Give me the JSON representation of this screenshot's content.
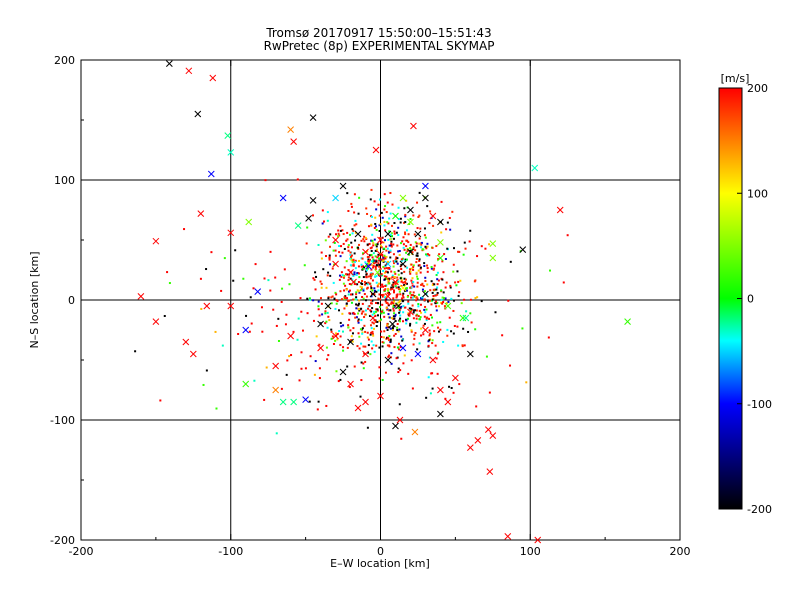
{
  "chart_data": {
    "type": "scatter",
    "title": "Tromsø 20170917 15:50:00–15:51:43",
    "subtitle": "RwPretec (8p) EXPERIMENTAL SKYMAP",
    "xlabel": "E–W location [km]",
    "ylabel": "N–S location [km]",
    "xlim": [
      -200,
      200
    ],
    "ylim": [
      -200,
      200
    ],
    "x_ticks": [
      -200,
      -100,
      0,
      100,
      200
    ],
    "y_ticks": [
      -200,
      -100,
      0,
      100,
      200
    ],
    "grid": true,
    "colorbar": {
      "label": "[m/s]",
      "range": [
        -200,
        200
      ],
      "ticks": [
        200,
        100,
        0,
        -100,
        -200
      ],
      "colors": [
        "#ff0000",
        "#ffff00",
        "#00ff00",
        "#00ffff",
        "#0000ff",
        "#000000"
      ]
    },
    "crosses": [
      {
        "x": -141,
        "y": 197,
        "v": -200
      },
      {
        "x": -128,
        "y": 191,
        "v": 200
      },
      {
        "x": -112,
        "y": 185,
        "v": 200
      },
      {
        "x": -122,
        "y": 155,
        "v": -200
      },
      {
        "x": -45,
        "y": 152,
        "v": -200
      },
      {
        "x": -102,
        "y": 137,
        "v": -20
      },
      {
        "x": -100,
        "y": 123,
        "v": -30
      },
      {
        "x": -113,
        "y": 105,
        "v": -100
      },
      {
        "x": -60,
        "y": 142,
        "v": 150
      },
      {
        "x": -58,
        "y": 132,
        "v": 200
      },
      {
        "x": 22,
        "y": 145,
        "v": 200
      },
      {
        "x": -3,
        "y": 125,
        "v": 200
      },
      {
        "x": -120,
        "y": 72,
        "v": 200
      },
      {
        "x": -100,
        "y": 56,
        "v": 200
      },
      {
        "x": -88,
        "y": 65,
        "v": 50
      },
      {
        "x": -150,
        "y": 49,
        "v": 200
      },
      {
        "x": -160,
        "y": 3,
        "v": 200
      },
      {
        "x": -150,
        "y": -18,
        "v": 200
      },
      {
        "x": -130,
        "y": -35,
        "v": 200
      },
      {
        "x": -125,
        "y": -45,
        "v": 200
      },
      {
        "x": -116,
        "y": -5,
        "v": 200
      },
      {
        "x": -90,
        "y": -25,
        "v": -100
      },
      {
        "x": -82,
        "y": 7,
        "v": -100
      },
      {
        "x": -90,
        "y": -70,
        "v": 20
      },
      {
        "x": -65,
        "y": -85,
        "v": -20
      },
      {
        "x": -58,
        "y": -85,
        "v": -20
      },
      {
        "x": -50,
        "y": -83,
        "v": -100
      },
      {
        "x": -70,
        "y": -75,
        "v": 150
      },
      {
        "x": -65,
        "y": 85,
        "v": -100
      },
      {
        "x": -45,
        "y": 83,
        "v": -200
      },
      {
        "x": -30,
        "y": 85,
        "v": -50
      },
      {
        "x": -25,
        "y": 95,
        "v": -200
      },
      {
        "x": -48,
        "y": 68,
        "v": -200
      },
      {
        "x": -55,
        "y": 62,
        "v": -20
      },
      {
        "x": -30,
        "y": 50,
        "v": 200
      },
      {
        "x": -15,
        "y": 55,
        "v": -200
      },
      {
        "x": -10,
        "y": 40,
        "v": 200
      },
      {
        "x": 0,
        "y": 38,
        "v": 200
      },
      {
        "x": -20,
        "y": 23,
        "v": 200
      },
      {
        "x": -18,
        "y": 15,
        "v": 200
      },
      {
        "x": -8,
        "y": 28,
        "v": -100
      },
      {
        "x": -2,
        "y": 23,
        "v": 50
      },
      {
        "x": 10,
        "y": 15,
        "v": 200
      },
      {
        "x": 15,
        "y": 30,
        "v": -200
      },
      {
        "x": 20,
        "y": 40,
        "v": -200
      },
      {
        "x": 25,
        "y": 55,
        "v": -200
      },
      {
        "x": 10,
        "y": 70,
        "v": 0
      },
      {
        "x": 20,
        "y": 75,
        "v": -200
      },
      {
        "x": 30,
        "y": 85,
        "v": -200
      },
      {
        "x": 30,
        "y": 95,
        "v": -100
      },
      {
        "x": 15,
        "y": 85,
        "v": 50
      },
      {
        "x": 35,
        "y": 70,
        "v": 200
      },
      {
        "x": 40,
        "y": 65,
        "v": -200
      },
      {
        "x": 5,
        "y": 55,
        "v": -200
      },
      {
        "x": 0,
        "y": 50,
        "v": 200
      },
      {
        "x": -5,
        "y": 5,
        "v": -200
      },
      {
        "x": 5,
        "y": 3,
        "v": 200
      },
      {
        "x": 12,
        "y": -5,
        "v": -200
      },
      {
        "x": 20,
        "y": -10,
        "v": 200
      },
      {
        "x": 30,
        "y": 5,
        "v": -200
      },
      {
        "x": 45,
        "y": -5,
        "v": 30
      },
      {
        "x": 55,
        "y": -15,
        "v": 20
      },
      {
        "x": -35,
        "y": -5,
        "v": -200
      },
      {
        "x": -40,
        "y": -20,
        "v": -200
      },
      {
        "x": -30,
        "y": -30,
        "v": 200
      },
      {
        "x": -20,
        "y": -35,
        "v": -200
      },
      {
        "x": -10,
        "y": -45,
        "v": 200
      },
      {
        "x": 5,
        "y": -50,
        "v": -200
      },
      {
        "x": 15,
        "y": -40,
        "v": -100
      },
      {
        "x": 25,
        "y": -45,
        "v": -100
      },
      {
        "x": 35,
        "y": -50,
        "v": 200
      },
      {
        "x": 50,
        "y": -65,
        "v": 200
      },
      {
        "x": 60,
        "y": -45,
        "v": -200
      },
      {
        "x": 40,
        "y": -75,
        "v": 200
      },
      {
        "x": 45,
        "y": -85,
        "v": 200
      },
      {
        "x": 40,
        "y": -95,
        "v": -200
      },
      {
        "x": -20,
        "y": -70,
        "v": 200
      },
      {
        "x": -10,
        "y": -85,
        "v": 200
      },
      {
        "x": -15,
        "y": -90,
        "v": 200
      },
      {
        "x": 0,
        "y": -80,
        "v": 200
      },
      {
        "x": 10,
        "y": -105,
        "v": -200
      },
      {
        "x": 13,
        "y": -100,
        "v": 200
      },
      {
        "x": 23,
        "y": -110,
        "v": 150
      },
      {
        "x": 60,
        "y": -123,
        "v": 200
      },
      {
        "x": 65,
        "y": -117,
        "v": 200
      },
      {
        "x": 72,
        "y": -108,
        "v": 200
      },
      {
        "x": 75,
        "y": -113,
        "v": 200
      },
      {
        "x": 73,
        "y": -143,
        "v": 200
      },
      {
        "x": 85,
        "y": -197,
        "v": 200
      },
      {
        "x": 105,
        "y": -200,
        "v": 200
      },
      {
        "x": 40,
        "y": 48,
        "v": 50
      },
      {
        "x": 75,
        "y": 35,
        "v": 50
      },
      {
        "x": 75,
        "y": 47,
        "v": 50
      },
      {
        "x": 95,
        "y": 42,
        "v": -200
      },
      {
        "x": 120,
        "y": 75,
        "v": 200
      },
      {
        "x": 103,
        "y": 110,
        "v": -30
      },
      {
        "x": 165,
        "y": -18,
        "v": 20
      },
      {
        "x": 57,
        "y": -15,
        "v": -20
      },
      {
        "x": -100,
        "y": -5,
        "v": 200
      },
      {
        "x": -30,
        "y": 30,
        "v": 200
      },
      {
        "x": 5,
        "y": 30,
        "v": -50
      },
      {
        "x": 15,
        "y": 10,
        "v": 100
      },
      {
        "x": -5,
        "y": -15,
        "v": 200
      },
      {
        "x": 8,
        "y": -20,
        "v": -200
      },
      {
        "x": -60,
        "y": -30,
        "v": 200
      },
      {
        "x": -25,
        "y": -60,
        "v": -200
      },
      {
        "x": -40,
        "y": -40,
        "v": 200
      },
      {
        "x": 20,
        "y": 65,
        "v": 50
      },
      {
        "x": 40,
        "y": 35,
        "v": 20
      },
      {
        "x": -70,
        "y": -55,
        "v": 200
      },
      {
        "x": 30,
        "y": -25,
        "v": 200
      }
    ]
  }
}
